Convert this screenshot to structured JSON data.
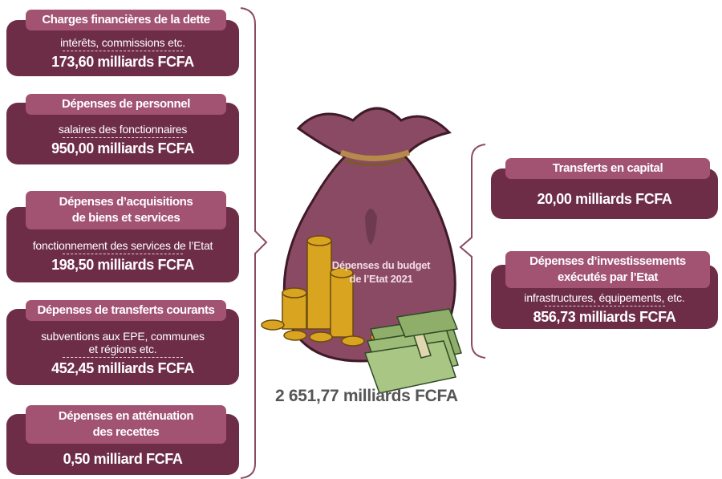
{
  "left": [
    {
      "title": [
        "Charges financières de la dette"
      ],
      "description": [
        "intérêts, commissions etc."
      ],
      "amount": "173,60 milliards FCFA"
    },
    {
      "title": [
        "Dépenses de personnel"
      ],
      "description": [
        "salaires des fonctionnaires"
      ],
      "amount": "950,00 milliards FCFA"
    },
    {
      "title": [
        "Dépenses d’acquisitions",
        "de biens et services"
      ],
      "description": [
        "fonctionnement des services de l’Etat"
      ],
      "amount": "198,50 milliards FCFA"
    },
    {
      "title": [
        "Dépenses de transferts courants"
      ],
      "description": [
        "subventions aux EPE, communes",
        "et régions etc."
      ],
      "amount": "452,45 milliards FCFA"
    },
    {
      "title": [
        "Dépenses en atténuation",
        "des recettes"
      ],
      "amount": "0,50 milliard FCFA"
    }
  ],
  "right": [
    {
      "title": [
        "Transferts en capital"
      ],
      "amount": "20,00 milliards FCFA"
    },
    {
      "title": [
        "Dépenses d’investissements",
        "exécutés par l’Etat"
      ],
      "description": [
        "infrastructures, équipements, etc."
      ],
      "amount": "856,73 milliards FCFA"
    }
  ],
  "center": {
    "label": [
      "Dépenses du budget",
      "de l’Etat 2021"
    ],
    "total": "2 651,77 milliards FCFA"
  }
}
